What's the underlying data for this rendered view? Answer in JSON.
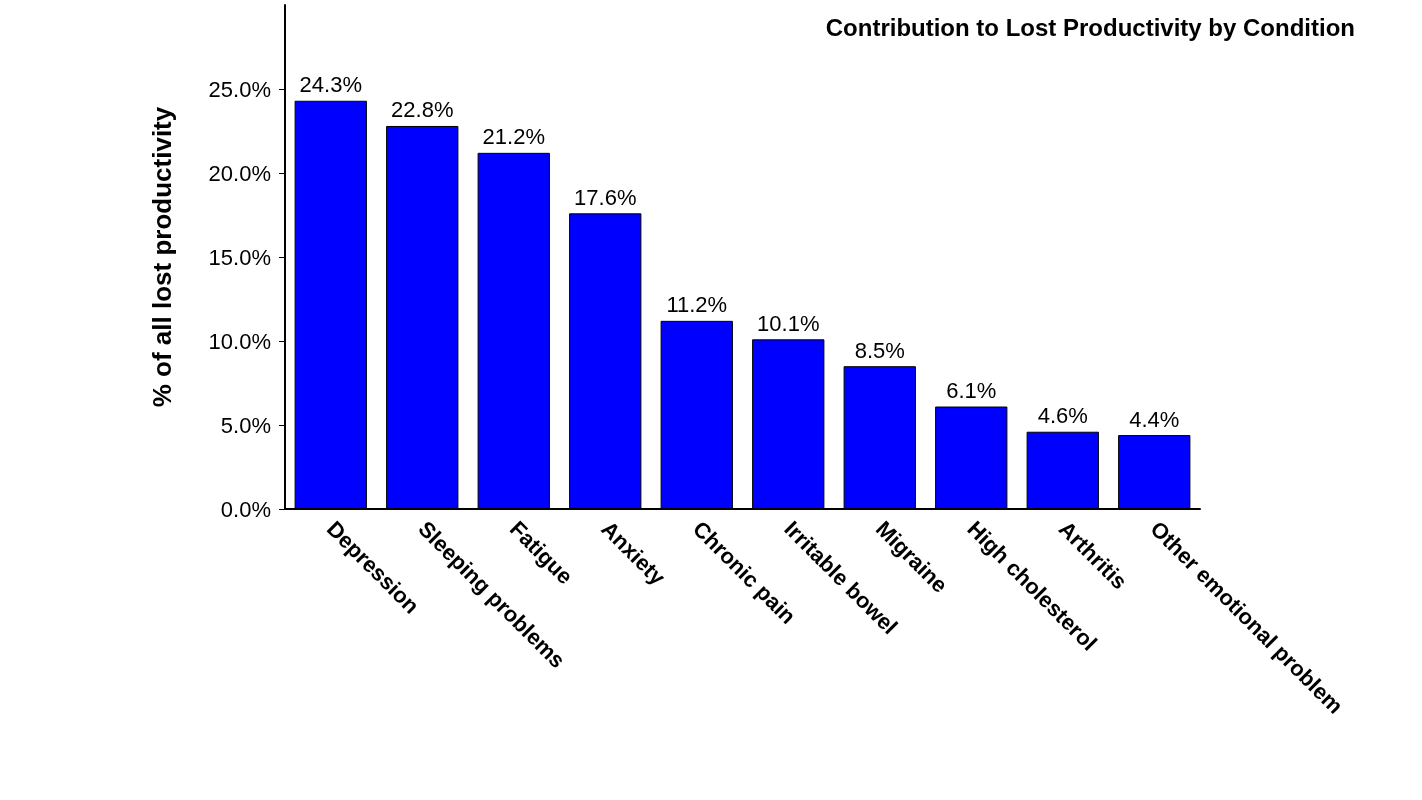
{
  "chart_data": {
    "type": "bar",
    "title": "Contribution to Lost Productivity by Condition",
    "ylabel": "% of all lost productivity",
    "categories": [
      "Depression",
      "Sleeping problems",
      "Fatigue",
      "Anxiety",
      "Chronic pain",
      "Irritable bowel",
      "Migraine",
      "High cholesterol",
      "Arthritis",
      "Other emotional problem"
    ],
    "values": [
      24.3,
      22.8,
      21.2,
      17.6,
      11.2,
      10.1,
      8.5,
      6.1,
      4.6,
      4.4
    ],
    "value_labels": [
      "24.3%",
      "22.8%",
      "21.2%",
      "17.6%",
      "11.2%",
      "10.1%",
      "8.5%",
      "6.1%",
      "4.6%",
      "4.4%"
    ],
    "color": "#0000ff",
    "ylim": [
      0,
      30
    ],
    "yticks": [
      {
        "value": 0,
        "label": "0.0%"
      },
      {
        "value": 5,
        "label": "5.0%"
      },
      {
        "value": 10,
        "label": "10.0%"
      },
      {
        "value": 15,
        "label": "15.0%"
      },
      {
        "value": 20,
        "label": "20.0%"
      },
      {
        "value": 25,
        "label": "25.0%"
      }
    ],
    "grid": false
  }
}
